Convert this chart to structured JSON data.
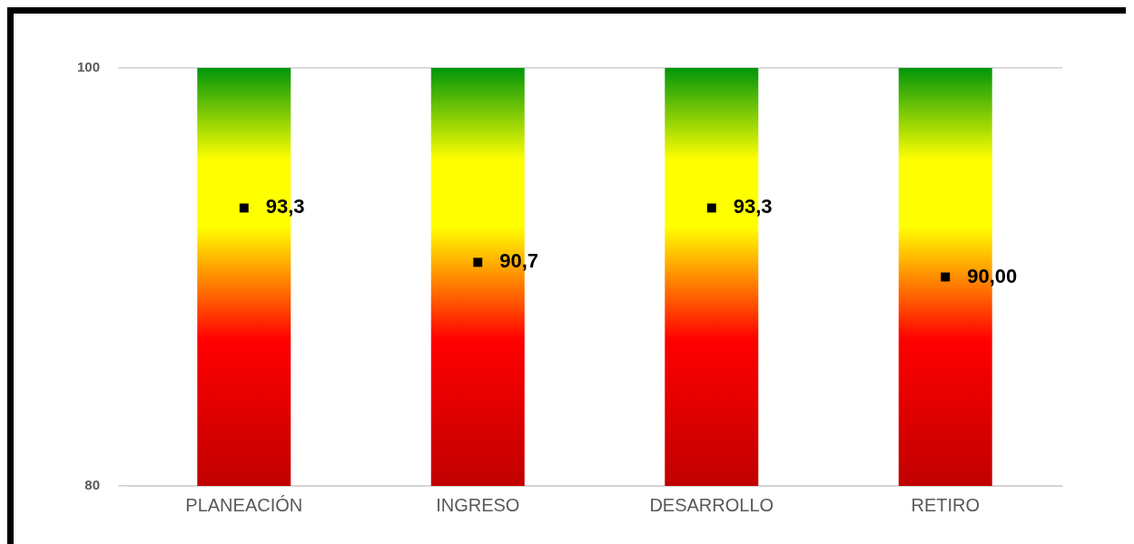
{
  "chart_data": {
    "type": "bar",
    "categories": [
      "PLANEACIÓN",
      "INGRESO",
      "DESARROLLO",
      "RETIRO"
    ],
    "series": [
      {
        "color": "#ffff00",
        "values": [
          100,
          100,
          100,
          100
        ]
      },
      {
        "type": "scatter",
        "color": "#000000",
        "marker": "square",
        "values": [
          93.3,
          90.7,
          93.3,
          90.0
        ],
        "value_labels": [
          "93,3",
          "90,7",
          "93,3",
          "90,00"
        ]
      }
    ],
    "ylim": [
      80,
      100
    ],
    "yticks": [
      80,
      100
    ],
    "grid": "y",
    "legend": false
  }
}
